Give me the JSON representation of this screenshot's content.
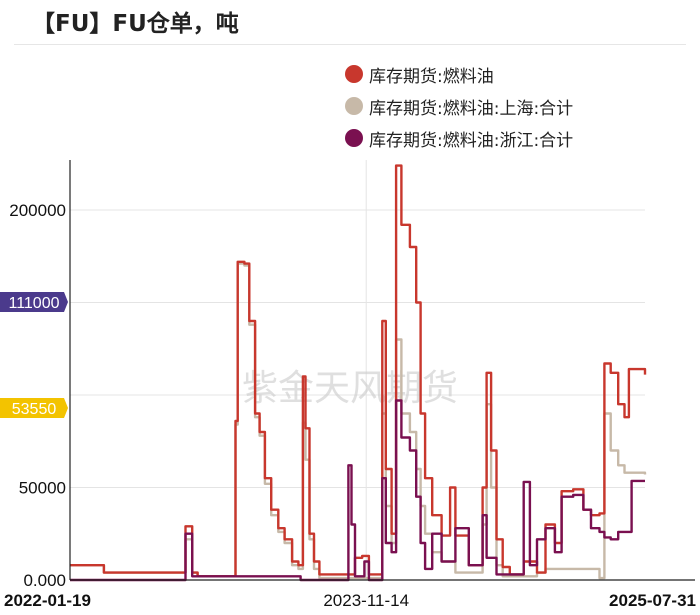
{
  "title": "【FU】FU仓单，吨",
  "watermark": "紫金天风期货",
  "chart_data": {
    "type": "line",
    "x_start": "2022-01-19",
    "x_end": "2025-07-31",
    "x_ticks": [
      "2022-01-19",
      "2023-11-14",
      "2025-07-31"
    ],
    "y_ticks": [
      "0.000",
      "50000",
      "200000"
    ],
    "ylim": [
      0,
      227000
    ],
    "grid": true,
    "legend_position": "top-right",
    "last_value_badges": [
      {
        "label": "111000",
        "value": 111000,
        "color": "#4b3a8c"
      },
      {
        "label": "53550",
        "value": 53550,
        "color": "#f3c300"
      }
    ],
    "series": [
      {
        "name": "库存期货:燃料油",
        "color": "#c8372d",
        "points": [
          [
            "2022-01-19",
            8000
          ],
          [
            "2022-04-01",
            8000
          ],
          [
            "2022-04-05",
            4000
          ],
          [
            "2022-10-01",
            4000
          ],
          [
            "2022-10-05",
            29000
          ],
          [
            "2022-10-12",
            29000
          ],
          [
            "2022-10-20",
            4000
          ],
          [
            "2022-11-01",
            2000
          ],
          [
            "2023-01-19",
            2000
          ],
          [
            "2023-01-25",
            86000
          ],
          [
            "2023-01-30",
            172000
          ],
          [
            "2023-02-14",
            171000
          ],
          [
            "2023-02-25",
            140000
          ],
          [
            "2023-03-10",
            90000
          ],
          [
            "2023-03-20",
            80000
          ],
          [
            "2023-04-01",
            55000
          ],
          [
            "2023-04-15",
            38000
          ],
          [
            "2023-05-01",
            28000
          ],
          [
            "2023-05-15",
            22000
          ],
          [
            "2023-06-01",
            10000
          ],
          [
            "2023-06-15",
            8000
          ],
          [
            "2023-06-25",
            110000
          ],
          [
            "2023-07-01",
            82000
          ],
          [
            "2023-07-10",
            25000
          ],
          [
            "2023-07-20",
            10000
          ],
          [
            "2023-08-01",
            3000
          ],
          [
            "2023-10-20",
            12000
          ],
          [
            "2023-11-05",
            13000
          ],
          [
            "2023-11-20",
            3000
          ],
          [
            "2023-12-15",
            3000
          ],
          [
            "2023-12-20",
            140000
          ],
          [
            "2023-12-28",
            60000
          ],
          [
            "2024-01-10",
            25000
          ],
          [
            "2024-01-20",
            224000
          ],
          [
            "2024-02-01",
            192000
          ],
          [
            "2024-02-20",
            180000
          ],
          [
            "2024-03-05",
            150000
          ],
          [
            "2024-03-15",
            90000
          ],
          [
            "2024-03-25",
            55000
          ],
          [
            "2024-04-10",
            35000
          ],
          [
            "2024-05-01",
            24000
          ],
          [
            "2024-05-20",
            50000
          ],
          [
            "2024-06-01",
            24000
          ],
          [
            "2024-07-01",
            8000
          ],
          [
            "2024-08-01",
            50000
          ],
          [
            "2024-08-10",
            112000
          ],
          [
            "2024-08-20",
            70000
          ],
          [
            "2024-09-01",
            22000
          ],
          [
            "2024-09-15",
            7000
          ],
          [
            "2024-10-01",
            3000
          ],
          [
            "2024-11-01",
            10000
          ],
          [
            "2024-12-01",
            4000
          ],
          [
            "2024-12-20",
            30000
          ],
          [
            "2025-01-10",
            20000
          ],
          [
            "2025-01-25",
            48000
          ],
          [
            "2025-02-20",
            49000
          ],
          [
            "2025-03-15",
            38000
          ],
          [
            "2025-04-01",
            35000
          ],
          [
            "2025-04-20",
            36000
          ],
          [
            "2025-05-01",
            117000
          ],
          [
            "2025-05-15",
            112000
          ],
          [
            "2025-06-01",
            95000
          ],
          [
            "2025-06-15",
            88000
          ],
          [
            "2025-06-25",
            114000
          ],
          [
            "2025-07-31",
            111000
          ]
        ]
      },
      {
        "name": "库存期货:燃料油:上海:合计",
        "color": "#c7b9a8",
        "points": [
          [
            "2022-01-19",
            8000
          ],
          [
            "2022-04-01",
            8000
          ],
          [
            "2022-04-05",
            4000
          ],
          [
            "2022-10-01",
            4000
          ],
          [
            "2022-10-05",
            22000
          ],
          [
            "2022-10-12",
            22000
          ],
          [
            "2022-10-20",
            4000
          ],
          [
            "2022-11-01",
            2000
          ],
          [
            "2023-01-19",
            2000
          ],
          [
            "2023-01-25",
            84000
          ],
          [
            "2023-01-30",
            171000
          ],
          [
            "2023-02-14",
            170000
          ],
          [
            "2023-02-25",
            138000
          ],
          [
            "2023-03-10",
            88000
          ],
          [
            "2023-03-20",
            78000
          ],
          [
            "2023-04-01",
            52000
          ],
          [
            "2023-04-15",
            35000
          ],
          [
            "2023-05-01",
            26000
          ],
          [
            "2023-05-15",
            20000
          ],
          [
            "2023-06-01",
            8000
          ],
          [
            "2023-06-15",
            6000
          ],
          [
            "2023-06-25",
            85000
          ],
          [
            "2023-07-01",
            65000
          ],
          [
            "2023-07-10",
            22000
          ],
          [
            "2023-07-20",
            6000
          ],
          [
            "2023-08-01",
            1000
          ],
          [
            "2023-12-15",
            1000
          ],
          [
            "2023-12-20",
            90000
          ],
          [
            "2023-12-28",
            40000
          ],
          [
            "2024-01-10",
            20000
          ],
          [
            "2024-01-20",
            130000
          ],
          [
            "2024-02-01",
            90000
          ],
          [
            "2024-02-20",
            80000
          ],
          [
            "2024-03-05",
            60000
          ],
          [
            "2024-03-15",
            40000
          ],
          [
            "2024-03-25",
            25000
          ],
          [
            "2024-04-10",
            15000
          ],
          [
            "2024-05-01",
            10000
          ],
          [
            "2024-06-01",
            4000
          ],
          [
            "2024-08-01",
            30000
          ],
          [
            "2024-08-10",
            95000
          ],
          [
            "2024-08-20",
            50000
          ],
          [
            "2024-09-01",
            8000
          ],
          [
            "2024-09-15",
            2000
          ],
          [
            "2024-12-01",
            4000
          ],
          [
            "2024-12-20",
            6000
          ],
          [
            "2025-04-20",
            1000
          ],
          [
            "2025-05-01",
            90000
          ],
          [
            "2025-05-15",
            70000
          ],
          [
            "2025-06-01",
            62000
          ],
          [
            "2025-06-15",
            58000
          ],
          [
            "2025-07-31",
            57000
          ]
        ]
      },
      {
        "name": "库存期货:燃料油:浙江:合计",
        "color": "#7a1050",
        "points": [
          [
            "2022-01-19",
            0
          ],
          [
            "2022-10-01",
            0
          ],
          [
            "2022-10-05",
            25000
          ],
          [
            "2022-10-12",
            25000
          ],
          [
            "2022-10-20",
            2000
          ],
          [
            "2023-06-15",
            2000
          ],
          [
            "2023-06-20",
            0
          ],
          [
            "2023-10-01",
            0
          ],
          [
            "2023-10-05",
            62000
          ],
          [
            "2023-10-12",
            30000
          ],
          [
            "2023-10-20",
            2000
          ],
          [
            "2023-11-10",
            10000
          ],
          [
            "2023-11-20",
            0
          ],
          [
            "2023-12-15",
            0
          ],
          [
            "2023-12-20",
            55000
          ],
          [
            "2023-12-28",
            20000
          ],
          [
            "2024-01-10",
            15000
          ],
          [
            "2024-01-20",
            97000
          ],
          [
            "2024-02-01",
            77000
          ],
          [
            "2024-02-20",
            70000
          ],
          [
            "2024-03-05",
            45000
          ],
          [
            "2024-03-15",
            20000
          ],
          [
            "2024-03-25",
            6000
          ],
          [
            "2024-04-10",
            25000
          ],
          [
            "2024-05-01",
            10000
          ],
          [
            "2024-06-01",
            28000
          ],
          [
            "2024-07-01",
            8000
          ],
          [
            "2024-08-01",
            35000
          ],
          [
            "2024-08-10",
            12000
          ],
          [
            "2024-09-01",
            3000
          ],
          [
            "2024-11-01",
            53000
          ],
          [
            "2024-11-15",
            8000
          ],
          [
            "2024-12-01",
            22000
          ],
          [
            "2024-12-20",
            28000
          ],
          [
            "2025-01-10",
            15000
          ],
          [
            "2025-01-25",
            45000
          ],
          [
            "2025-02-20",
            46000
          ],
          [
            "2025-03-15",
            38000
          ],
          [
            "2025-04-01",
            28000
          ],
          [
            "2025-04-20",
            26000
          ],
          [
            "2025-05-01",
            23000
          ],
          [
            "2025-05-15",
            22000
          ],
          [
            "2025-06-01",
            26000
          ],
          [
            "2025-06-25",
            26000
          ],
          [
            "2025-07-01",
            53550
          ],
          [
            "2025-07-31",
            53550
          ]
        ]
      }
    ]
  }
}
